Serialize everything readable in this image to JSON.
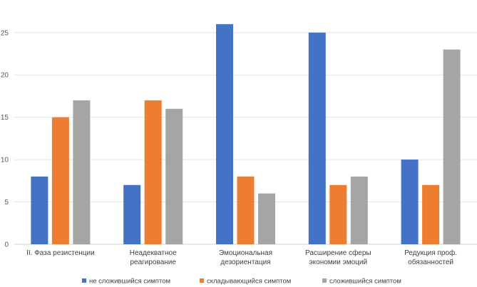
{
  "chart_data": {
    "type": "bar",
    "title": "",
    "xlabel": "",
    "ylabel": "",
    "ylim": [
      0,
      27
    ],
    "yticks": [
      0,
      5,
      10,
      15,
      20,
      25
    ],
    "grid": true,
    "legend_position": "bottom",
    "categories": [
      [
        "II. Фаза резистенции"
      ],
      [
        "Неадекватное",
        "реагирование"
      ],
      [
        "Эмоциональная",
        "дезориентация"
      ],
      [
        "Расширение сферы",
        "экономии эмоций"
      ],
      [
        "Редукция проф.",
        "обязанностей"
      ]
    ],
    "series": [
      {
        "name": "не сложившийся симптом",
        "color": "#4472C4",
        "values": [
          8,
          7,
          26,
          25,
          10
        ]
      },
      {
        "name": "складывающийся симптом",
        "color": "#ED7D31",
        "values": [
          15,
          17,
          8,
          7,
          7
        ]
      },
      {
        "name": "сложившийся симптом",
        "color": "#A5A5A5",
        "values": [
          17,
          16,
          6,
          8,
          23
        ]
      }
    ]
  }
}
